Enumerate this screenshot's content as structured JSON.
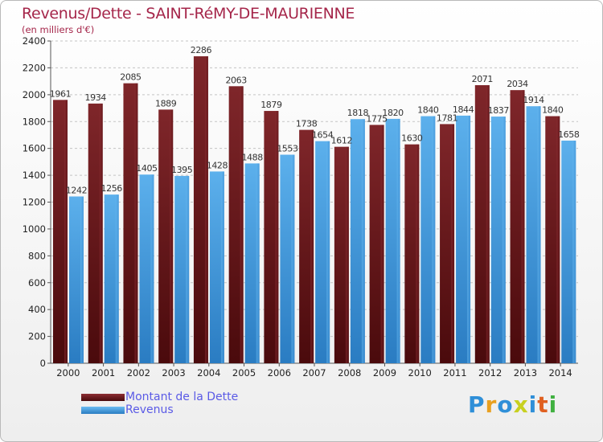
{
  "header": {
    "title": "Revenus/Dette - SAINT-RéMY-DE-MAURIENNE",
    "subtitle": "(en milliers d'€)"
  },
  "legend": {
    "debt_label": "Montant de la Dette",
    "revenue_label": "Revenus"
  },
  "logo": {
    "text": "Proxiti"
  },
  "colors": {
    "debt": "#7a2226",
    "debt_dark": "#4a0c0e",
    "revenue": "#5aaae6",
    "revenue_dark": "#2a7cc0",
    "title": "#a5264a",
    "legend_text": "#5a5ae6"
  },
  "chart_data": {
    "type": "bar",
    "title": "Revenus/Dette - SAINT-RéMY-DE-MAURIENNE",
    "subtitle": "(en milliers d'€)",
    "categories": [
      "2000",
      "2001",
      "2002",
      "2003",
      "2004",
      "2005",
      "2006",
      "2007",
      "2008",
      "2009",
      "2010",
      "2011",
      "2012",
      "2013",
      "2014"
    ],
    "series": [
      {
        "name": "Montant de la Dette",
        "values": [
          1961,
          1934,
          2085,
          1889,
          2286,
          2063,
          1879,
          1738,
          1612,
          1775,
          1630,
          1781,
          2071,
          2034,
          1840
        ]
      },
      {
        "name": "Revenus",
        "values": [
          1242,
          1256,
          1405,
          1395,
          1428,
          1488,
          1553,
          1654,
          1818,
          1820,
          1840,
          1844,
          1837,
          1914,
          1658
        ]
      }
    ],
    "ylim": [
      0,
      2400
    ],
    "yticks": [
      0,
      200,
      400,
      600,
      800,
      1000,
      1200,
      1400,
      1600,
      1800,
      2000,
      2200,
      2400
    ],
    "grid": true,
    "legend_position": "bottom-left"
  }
}
